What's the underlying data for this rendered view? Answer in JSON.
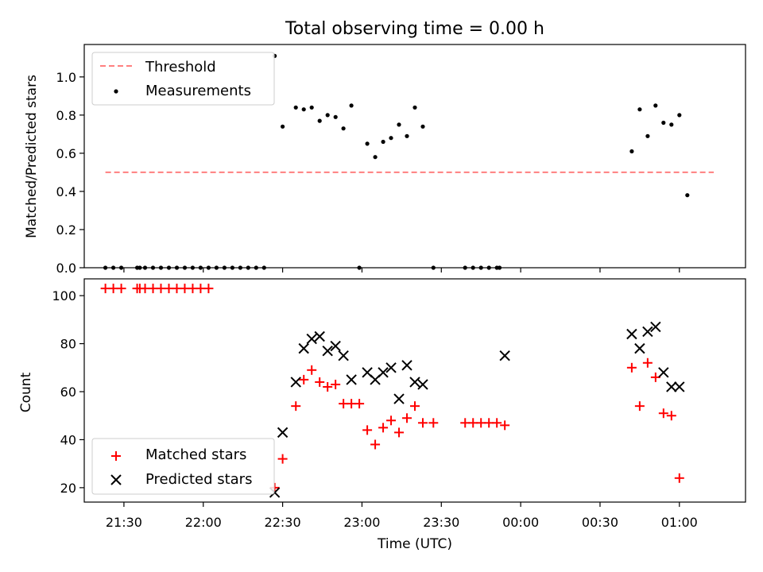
{
  "chart_data": [
    {
      "type": "scatter",
      "title": "Total observing time = 0.00 h",
      "xlabel": "",
      "ylabel": "Matched/Predicted stars",
      "xlim": [
        "21:15",
        "01:25"
      ],
      "ylim": [
        0,
        1.17
      ],
      "yticks": [
        "0.0",
        "0.2",
        "0.4",
        "0.6",
        "0.8",
        "1.0"
      ],
      "legend": {
        "position": "top-left",
        "entries": [
          "Threshold",
          "Measurements"
        ]
      },
      "threshold": {
        "name": "Threshold",
        "value": 0.5,
        "x_start": "21:23",
        "x_end": "01:13",
        "color": "#ff7f7f",
        "style": "dashed"
      },
      "series": [
        {
          "name": "Measurements",
          "color": "#000000",
          "marker": "dot",
          "points": [
            [
              "21:23",
              0.0
            ],
            [
              "21:26",
              0.0
            ],
            [
              "21:29",
              0.0
            ],
            [
              "21:35",
              0.0
            ],
            [
              "21:36",
              0.0
            ],
            [
              "21:38",
              0.0
            ],
            [
              "21:41",
              0.0
            ],
            [
              "21:44",
              0.0
            ],
            [
              "21:47",
              0.0
            ],
            [
              "21:50",
              0.0
            ],
            [
              "21:53",
              0.0
            ],
            [
              "21:56",
              0.0
            ],
            [
              "21:59",
              0.0
            ],
            [
              "22:02",
              0.0
            ],
            [
              "22:05",
              0.0
            ],
            [
              "22:08",
              0.0
            ],
            [
              "22:11",
              0.0
            ],
            [
              "22:14",
              0.0
            ],
            [
              "22:17",
              0.0
            ],
            [
              "22:20",
              0.0
            ],
            [
              "22:23",
              0.0
            ],
            [
              "22:27",
              1.11
            ],
            [
              "22:30",
              0.74
            ],
            [
              "22:35",
              0.84
            ],
            [
              "22:38",
              0.83
            ],
            [
              "22:41",
              0.84
            ],
            [
              "22:44",
              0.77
            ],
            [
              "22:47",
              0.8
            ],
            [
              "22:50",
              0.79
            ],
            [
              "22:53",
              0.73
            ],
            [
              "22:56",
              0.85
            ],
            [
              "22:59",
              0.0
            ],
            [
              "23:02",
              0.65
            ],
            [
              "23:05",
              0.58
            ],
            [
              "23:08",
              0.66
            ],
            [
              "23:11",
              0.68
            ],
            [
              "23:14",
              0.75
            ],
            [
              "23:17",
              0.69
            ],
            [
              "23:20",
              0.84
            ],
            [
              "23:23",
              0.74
            ],
            [
              "23:27",
              0.0
            ],
            [
              "23:39",
              0.0
            ],
            [
              "23:42",
              0.0
            ],
            [
              "23:45",
              0.0
            ],
            [
              "23:48",
              0.0
            ],
            [
              "23:51",
              0.0
            ],
            [
              "23:52",
              0.0
            ],
            [
              "00:42",
              0.61
            ],
            [
              "00:45",
              0.83
            ],
            [
              "00:48",
              0.69
            ],
            [
              "00:51",
              0.85
            ],
            [
              "00:54",
              0.76
            ],
            [
              "00:57",
              0.75
            ],
            [
              "01:00",
              0.8
            ],
            [
              "01:03",
              0.38
            ]
          ]
        }
      ]
    },
    {
      "type": "scatter",
      "title": "",
      "xlabel": "Time (UTC)",
      "ylabel": "Count",
      "xlim": [
        "21:15",
        "01:25"
      ],
      "ylim": [
        14,
        107
      ],
      "yticks": [
        "20",
        "40",
        "60",
        "80",
        "100"
      ],
      "xticks": [
        "21:30",
        "22:00",
        "22:30",
        "23:00",
        "23:30",
        "00:00",
        "00:30",
        "01:00"
      ],
      "legend": {
        "position": "bottom-left",
        "entries": [
          "Matched stars",
          "Predicted stars"
        ]
      },
      "series": [
        {
          "name": "Matched stars",
          "color": "#ff0000",
          "marker": "plus",
          "points": [
            [
              "21:23",
              103
            ],
            [
              "21:26",
              103
            ],
            [
              "21:29",
              103
            ],
            [
              "21:35",
              103
            ],
            [
              "21:36",
              103
            ],
            [
              "21:38",
              103
            ],
            [
              "21:41",
              103
            ],
            [
              "21:44",
              103
            ],
            [
              "21:47",
              103
            ],
            [
              "21:50",
              103
            ],
            [
              "21:53",
              103
            ],
            [
              "21:56",
              103
            ],
            [
              "21:59",
              103
            ],
            [
              "22:02",
              103
            ],
            [
              "22:27",
              20
            ],
            [
              "22:30",
              32
            ],
            [
              "22:35",
              54
            ],
            [
              "22:38",
              65
            ],
            [
              "22:41",
              69
            ],
            [
              "22:44",
              64
            ],
            [
              "22:47",
              62
            ],
            [
              "22:50",
              63
            ],
            [
              "22:53",
              55
            ],
            [
              "22:56",
              55
            ],
            [
              "22:59",
              55
            ],
            [
              "23:02",
              44
            ],
            [
              "23:05",
              38
            ],
            [
              "23:08",
              45
            ],
            [
              "23:11",
              48
            ],
            [
              "23:14",
              43
            ],
            [
              "23:17",
              49
            ],
            [
              "23:20",
              54
            ],
            [
              "23:23",
              47
            ],
            [
              "23:27",
              47
            ],
            [
              "23:39",
              47
            ],
            [
              "23:42",
              47
            ],
            [
              "23:45",
              47
            ],
            [
              "23:48",
              47
            ],
            [
              "23:51",
              47
            ],
            [
              "23:54",
              46
            ],
            [
              "00:42",
              70
            ],
            [
              "00:45",
              54
            ],
            [
              "00:48",
              72
            ],
            [
              "00:51",
              66
            ],
            [
              "00:54",
              51
            ],
            [
              "00:57",
              50
            ],
            [
              "01:00",
              24
            ]
          ]
        },
        {
          "name": "Predicted stars",
          "color": "#000000",
          "marker": "x",
          "points": [
            [
              "22:27",
              18
            ],
            [
              "22:30",
              43
            ],
            [
              "22:35",
              64
            ],
            [
              "22:38",
              78
            ],
            [
              "22:41",
              82
            ],
            [
              "22:44",
              83
            ],
            [
              "22:47",
              77
            ],
            [
              "22:50",
              79
            ],
            [
              "22:53",
              75
            ],
            [
              "22:56",
              65
            ],
            [
              "23:02",
              68
            ],
            [
              "23:05",
              65
            ],
            [
              "23:08",
              68
            ],
            [
              "23:11",
              70
            ],
            [
              "23:14",
              57
            ],
            [
              "23:17",
              71
            ],
            [
              "23:20",
              64
            ],
            [
              "23:23",
              63
            ],
            [
              "23:54",
              75
            ],
            [
              "00:42",
              84
            ],
            [
              "00:45",
              78
            ],
            [
              "00:48",
              85
            ],
            [
              "00:51",
              87
            ],
            [
              "00:54",
              68
            ],
            [
              "00:57",
              62
            ],
            [
              "01:00",
              62
            ]
          ]
        }
      ]
    }
  ]
}
